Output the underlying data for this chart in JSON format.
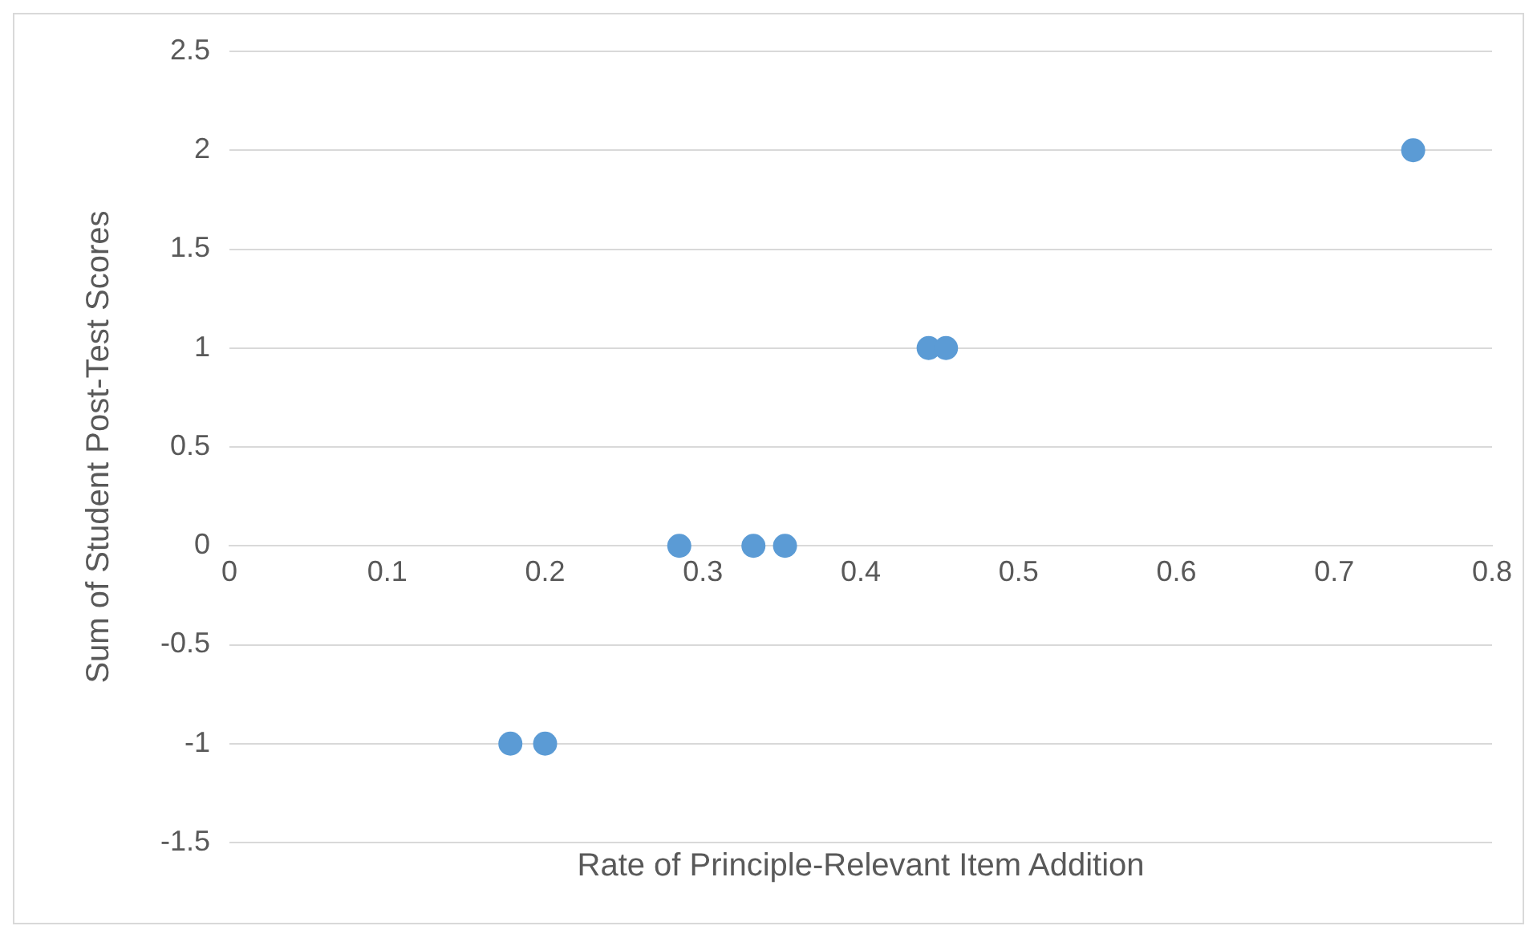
{
  "chart_data": {
    "type": "scatter",
    "xlabel": "Rate of Principle-Relevant Item Addition",
    "ylabel": "Sum of Student Post-Test Scores",
    "x": [
      0.178,
      0.2,
      0.285,
      0.332,
      0.352,
      0.443,
      0.454,
      0.75
    ],
    "series": [
      {
        "color": "#5b9bd5",
        "values": [
          -1,
          -1,
          0,
          0,
          0,
          1,
          1,
          2
        ]
      }
    ],
    "xlim": [
      0,
      0.8
    ],
    "xticks": [
      0,
      0.1,
      0.2,
      0.3,
      0.4,
      0.5,
      0.6,
      0.7,
      0.8
    ],
    "ylim": [
      -1.5,
      2.5
    ],
    "yticks": [
      -1.5,
      -1,
      -0.5,
      0,
      0.5,
      1,
      1.5,
      2,
      2.5
    ],
    "grid": "y",
    "legend": false,
    "marker": "circle"
  }
}
